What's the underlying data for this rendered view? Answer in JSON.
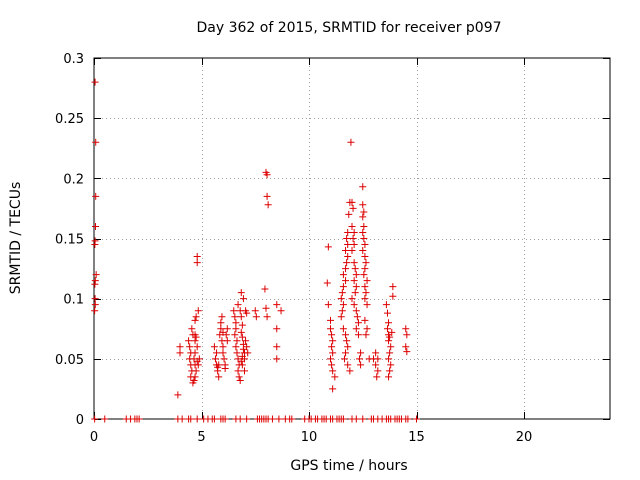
{
  "chart_data": {
    "type": "scatter",
    "title": "Day 362 of 2015, SRMTID for receiver p097",
    "xlabel": "GPS time / hours",
    "ylabel": "SRMTID / TECUs",
    "xlim": [
      0,
      24
    ],
    "ylim": [
      0,
      0.3
    ],
    "xticks": [
      0,
      5,
      10,
      15,
      20
    ],
    "xtick_labels": [
      "0",
      "5",
      "10",
      "15",
      "20"
    ],
    "yticks": [
      0,
      0.05,
      0.1,
      0.15,
      0.2,
      0.25,
      0.3
    ],
    "ytick_labels": [
      "0",
      "0.05",
      "0.1",
      "0.15",
      "0.2",
      "0.25",
      "0.3"
    ],
    "grid": true,
    "marker": "+",
    "color": "#dd0000",
    "series": [
      {
        "name": "SRMTID",
        "points": [
          [
            0.05,
            0.28
          ],
          [
            0.08,
            0.23
          ],
          [
            0.08,
            0.185
          ],
          [
            0.07,
            0.16
          ],
          [
            0.05,
            0.148
          ],
          [
            0.04,
            0.145
          ],
          [
            0.1,
            0.12
          ],
          [
            0.06,
            0.115
          ],
          [
            0.04,
            0.112
          ],
          [
            0.05,
            0.1
          ],
          [
            0.06,
            0.095
          ],
          [
            0.03,
            0.09
          ],
          [
            0.03,
            0.0
          ],
          [
            0.5,
            0.0
          ],
          [
            1.5,
            0.0
          ],
          [
            1.7,
            0.0
          ],
          [
            1.9,
            0.0
          ],
          [
            2.0,
            0.0
          ],
          [
            2.1,
            0.0
          ],
          [
            3.9,
            0.02
          ],
          [
            4.0,
            0.06
          ],
          [
            4.0,
            0.055
          ],
          [
            3.9,
            0.0
          ],
          [
            4.1,
            0.0
          ],
          [
            4.4,
            0.065
          ],
          [
            4.45,
            0.06
          ],
          [
            4.5,
            0.055
          ],
          [
            4.45,
            0.05
          ],
          [
            4.5,
            0.045
          ],
          [
            4.55,
            0.04
          ],
          [
            4.5,
            0.035
          ],
          [
            4.6,
            0.03
          ],
          [
            4.6,
            0.07
          ],
          [
            4.55,
            0.075
          ],
          [
            4.7,
            0.07
          ],
          [
            4.75,
            0.068
          ],
          [
            4.7,
            0.065
          ],
          [
            4.8,
            0.06
          ],
          [
            4.7,
            0.055
          ],
          [
            4.65,
            0.05
          ],
          [
            4.8,
            0.048
          ],
          [
            4.7,
            0.045
          ],
          [
            4.75,
            0.04
          ],
          [
            4.7,
            0.035
          ],
          [
            4.65,
            0.032
          ],
          [
            4.7,
            0.082
          ],
          [
            4.75,
            0.085
          ],
          [
            4.8,
            0.13
          ],
          [
            4.8,
            0.135
          ],
          [
            4.85,
            0.09
          ],
          [
            4.9,
            0.05
          ],
          [
            4.85,
            0.045
          ],
          [
            4.4,
            0.0
          ],
          [
            4.5,
            0.0
          ],
          [
            4.8,
            0.0
          ],
          [
            5.1,
            0.0
          ],
          [
            5.3,
            0.0
          ],
          [
            5.5,
            0.0
          ],
          [
            5.6,
            0.0
          ],
          [
            5.6,
            0.06
          ],
          [
            5.7,
            0.055
          ],
          [
            5.65,
            0.05
          ],
          [
            5.7,
            0.045
          ],
          [
            5.75,
            0.04
          ],
          [
            5.8,
            0.035
          ],
          [
            5.85,
            0.07
          ],
          [
            5.9,
            0.075
          ],
          [
            5.9,
            0.08
          ],
          [
            5.95,
            0.085
          ],
          [
            5.95,
            0.065
          ],
          [
            6.0,
            0.06
          ],
          [
            6.0,
            0.055
          ],
          [
            6.05,
            0.05
          ],
          [
            6.1,
            0.045
          ],
          [
            6.1,
            0.042
          ],
          [
            6.15,
            0.07
          ],
          [
            6.2,
            0.065
          ],
          [
            5.8,
            0.045
          ],
          [
            5.75,
            0.043
          ],
          [
            6.0,
            0.072
          ],
          [
            6.2,
            0.075
          ],
          [
            6.0,
            0.0
          ],
          [
            6.1,
            0.0
          ],
          [
            5.9,
            0.0
          ],
          [
            6.5,
            0.09
          ],
          [
            6.55,
            0.085
          ],
          [
            6.6,
            0.08
          ],
          [
            6.6,
            0.075
          ],
          [
            6.55,
            0.07
          ],
          [
            6.65,
            0.065
          ],
          [
            6.6,
            0.06
          ],
          [
            6.65,
            0.055
          ],
          [
            6.7,
            0.05
          ],
          [
            6.75,
            0.045
          ],
          [
            6.7,
            0.04
          ],
          [
            6.75,
            0.035
          ],
          [
            6.8,
            0.032
          ],
          [
            6.7,
            0.095
          ],
          [
            6.8,
            0.09
          ],
          [
            6.85,
            0.085
          ],
          [
            6.9,
            0.078
          ],
          [
            6.85,
            0.072
          ],
          [
            6.9,
            0.068
          ],
          [
            6.95,
            0.062
          ],
          [
            6.95,
            0.058
          ],
          [
            7.0,
            0.055
          ],
          [
            6.9,
            0.052
          ],
          [
            6.85,
            0.048
          ],
          [
            6.9,
            0.045
          ],
          [
            7.0,
            0.04
          ],
          [
            6.85,
            0.105
          ],
          [
            6.95,
            0.1
          ],
          [
            7.05,
            0.09
          ],
          [
            7.1,
            0.088
          ],
          [
            7.05,
            0.065
          ],
          [
            7.1,
            0.06
          ],
          [
            7.15,
            0.055
          ],
          [
            7.0,
            0.05
          ],
          [
            6.6,
            0.0
          ],
          [
            6.8,
            0.0
          ],
          [
            7.1,
            0.0
          ],
          [
            7.5,
            0.09
          ],
          [
            7.55,
            0.085
          ],
          [
            8.0,
            0.205
          ],
          [
            8.05,
            0.203
          ],
          [
            8.05,
            0.185
          ],
          [
            8.1,
            0.178
          ],
          [
            7.95,
            0.108
          ],
          [
            8.0,
            0.092
          ],
          [
            8.05,
            0.085
          ],
          [
            8.5,
            0.095
          ],
          [
            8.5,
            0.075
          ],
          [
            8.5,
            0.06
          ],
          [
            8.5,
            0.05
          ],
          [
            8.7,
            0.09
          ],
          [
            7.6,
            0.0
          ],
          [
            7.7,
            0.0
          ],
          [
            7.8,
            0.0
          ],
          [
            7.9,
            0.0
          ],
          [
            8.0,
            0.0
          ],
          [
            8.1,
            0.0
          ],
          [
            8.3,
            0.0
          ],
          [
            8.6,
            0.0
          ],
          [
            8.9,
            0.0
          ],
          [
            9.1,
            0.0
          ],
          [
            9.2,
            0.0
          ],
          [
            9.8,
            0.0
          ],
          [
            10.0,
            0.0
          ],
          [
            10.1,
            0.0
          ],
          [
            10.3,
            0.0
          ],
          [
            10.4,
            0.0
          ],
          [
            10.6,
            0.0
          ],
          [
            10.7,
            0.0
          ],
          [
            10.8,
            0.0
          ],
          [
            10.9,
            0.143
          ],
          [
            10.85,
            0.113
          ],
          [
            10.9,
            0.095
          ],
          [
            11.0,
            0.082
          ],
          [
            11.0,
            0.075
          ],
          [
            11.05,
            0.07
          ],
          [
            11.1,
            0.065
          ],
          [
            11.05,
            0.06
          ],
          [
            11.1,
            0.055
          ],
          [
            11.0,
            0.05
          ],
          [
            11.05,
            0.045
          ],
          [
            11.1,
            0.04
          ],
          [
            11.2,
            0.035
          ],
          [
            11.1,
            0.025
          ],
          [
            11.0,
            0.0
          ],
          [
            11.1,
            0.0
          ],
          [
            11.3,
            0.0
          ],
          [
            11.4,
            0.0
          ],
          [
            11.5,
            0.0
          ],
          [
            11.6,
            0.0
          ],
          [
            11.5,
            0.085
          ],
          [
            11.55,
            0.09
          ],
          [
            11.6,
            0.095
          ],
          [
            11.5,
            0.1
          ],
          [
            11.55,
            0.105
          ],
          [
            11.6,
            0.11
          ],
          [
            11.7,
            0.115
          ],
          [
            11.6,
            0.12
          ],
          [
            11.7,
            0.125
          ],
          [
            11.75,
            0.13
          ],
          [
            11.8,
            0.135
          ],
          [
            11.7,
            0.14
          ],
          [
            11.8,
            0.145
          ],
          [
            11.75,
            0.15
          ],
          [
            11.8,
            0.155
          ],
          [
            11.85,
            0.17
          ],
          [
            11.9,
            0.18
          ],
          [
            11.95,
            0.23
          ],
          [
            11.6,
            0.075
          ],
          [
            11.7,
            0.07
          ],
          [
            11.75,
            0.065
          ],
          [
            11.8,
            0.06
          ],
          [
            11.7,
            0.055
          ],
          [
            11.65,
            0.05
          ],
          [
            11.8,
            0.045
          ],
          [
            11.9,
            0.04
          ],
          [
            12.0,
            0.18
          ],
          [
            12.05,
            0.175
          ],
          [
            12.0,
            0.16
          ],
          [
            12.1,
            0.155
          ],
          [
            12.05,
            0.15
          ],
          [
            12.1,
            0.145
          ],
          [
            12.0,
            0.14
          ],
          [
            12.1,
            0.13
          ],
          [
            12.15,
            0.125
          ],
          [
            12.2,
            0.12
          ],
          [
            12.1,
            0.115
          ],
          [
            12.2,
            0.11
          ],
          [
            12.15,
            0.105
          ],
          [
            12.0,
            0.1
          ],
          [
            12.1,
            0.095
          ],
          [
            12.2,
            0.09
          ],
          [
            12.25,
            0.085
          ],
          [
            12.3,
            0.08
          ],
          [
            12.2,
            0.075
          ],
          [
            12.3,
            0.07
          ],
          [
            12.4,
            0.055
          ],
          [
            12.35,
            0.05
          ],
          [
            12.4,
            0.045
          ],
          [
            12.5,
            0.193
          ],
          [
            12.5,
            0.178
          ],
          [
            12.55,
            0.172
          ],
          [
            12.5,
            0.168
          ],
          [
            12.55,
            0.16
          ],
          [
            12.5,
            0.155
          ],
          [
            12.55,
            0.15
          ],
          [
            12.6,
            0.145
          ],
          [
            12.5,
            0.14
          ],
          [
            12.6,
            0.135
          ],
          [
            12.65,
            0.13
          ],
          [
            12.6,
            0.125
          ],
          [
            12.55,
            0.12
          ],
          [
            12.7,
            0.115
          ],
          [
            12.6,
            0.11
          ],
          [
            12.65,
            0.105
          ],
          [
            12.6,
            0.1
          ],
          [
            12.7,
            0.095
          ],
          [
            12.6,
            0.082
          ],
          [
            12.7,
            0.075
          ],
          [
            12.65,
            0.07
          ],
          [
            12.8,
            0.05
          ],
          [
            13.0,
            0.05
          ],
          [
            12.0,
            0.0
          ],
          [
            12.2,
            0.0
          ],
          [
            12.5,
            0.0
          ],
          [
            12.9,
            0.0
          ],
          [
            13.0,
            0.0
          ],
          [
            13.2,
            0.0
          ],
          [
            13.4,
            0.0
          ],
          [
            13.1,
            0.055
          ],
          [
            13.2,
            0.05
          ],
          [
            13.1,
            0.045
          ],
          [
            13.2,
            0.04
          ],
          [
            13.15,
            0.035
          ],
          [
            13.6,
            0.095
          ],
          [
            13.65,
            0.088
          ],
          [
            13.7,
            0.08
          ],
          [
            13.65,
            0.075
          ],
          [
            13.7,
            0.07
          ],
          [
            13.75,
            0.068
          ],
          [
            13.7,
            0.065
          ],
          [
            13.8,
            0.06
          ],
          [
            13.75,
            0.055
          ],
          [
            13.7,
            0.05
          ],
          [
            13.8,
            0.045
          ],
          [
            13.75,
            0.04
          ],
          [
            13.7,
            0.035
          ],
          [
            13.9,
            0.11
          ],
          [
            13.9,
            0.102
          ],
          [
            13.85,
            0.072
          ],
          [
            13.6,
            0.0
          ],
          [
            13.7,
            0.0
          ],
          [
            13.8,
            0.0
          ],
          [
            14.0,
            0.0
          ],
          [
            14.1,
            0.0
          ],
          [
            14.2,
            0.0
          ],
          [
            14.3,
            0.0
          ],
          [
            14.5,
            0.0
          ],
          [
            14.6,
            0.0
          ],
          [
            15.0,
            0.0
          ],
          [
            14.5,
            0.075
          ],
          [
            14.55,
            0.07
          ],
          [
            14.5,
            0.06
          ],
          [
            14.55,
            0.056
          ]
        ]
      }
    ]
  }
}
